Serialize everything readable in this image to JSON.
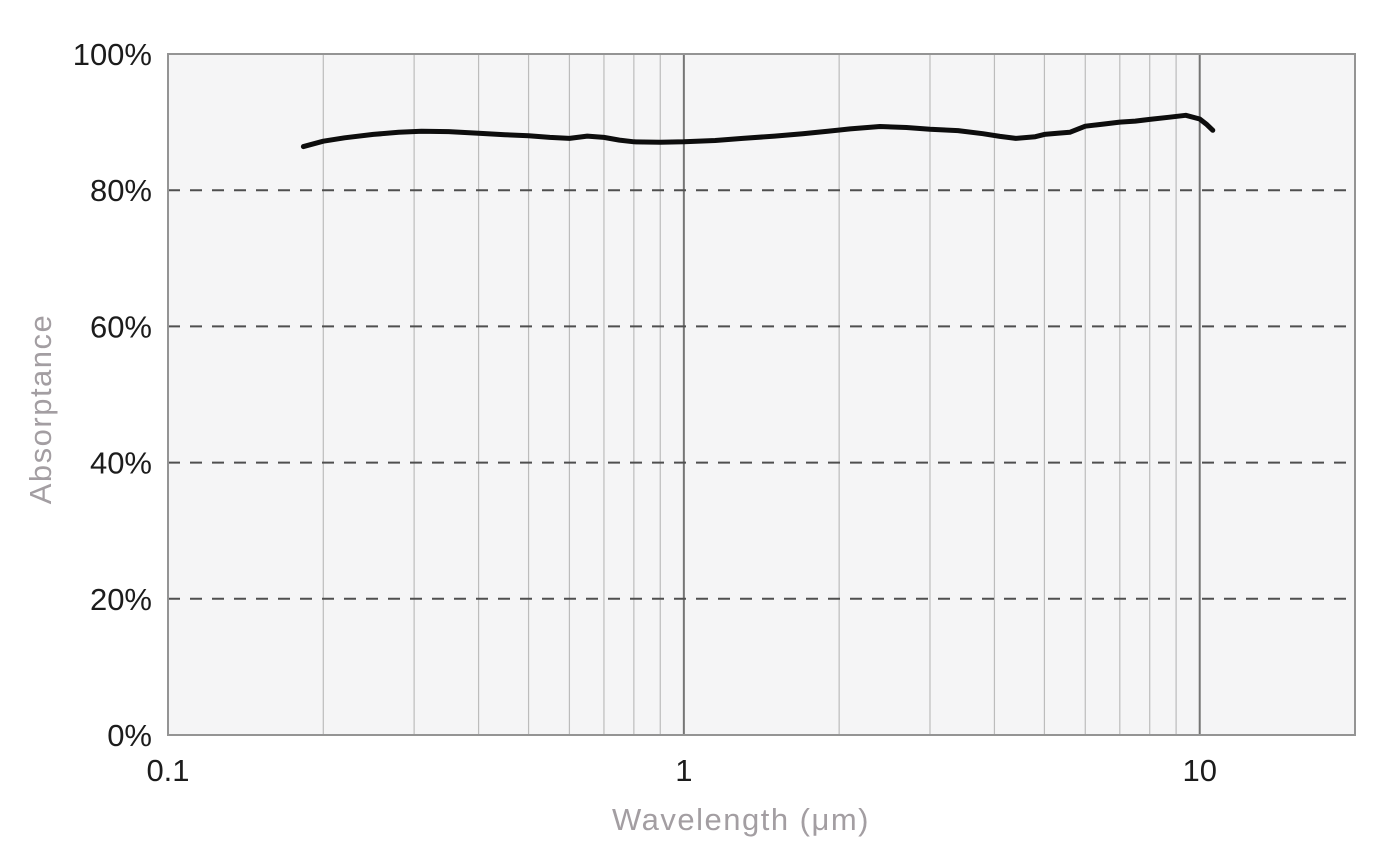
{
  "chart_data": {
    "type": "line",
    "title": "",
    "xlabel": "Wavelength (μm)",
    "ylabel": "Absorptance",
    "x_scale": "log",
    "xlim": [
      0.1,
      20
    ],
    "ylim": [
      0,
      100
    ],
    "grid": "on",
    "legend": "none",
    "x_ticks": [
      {
        "value": 0.1,
        "label": "0.1"
      },
      {
        "value": 1,
        "label": "1"
      },
      {
        "value": 10,
        "label": "10"
      }
    ],
    "y_ticks": [
      {
        "value": 0,
        "label": "0%"
      },
      {
        "value": 20,
        "label": "20%"
      },
      {
        "value": 40,
        "label": "40%"
      },
      {
        "value": 60,
        "label": "60%"
      },
      {
        "value": 80,
        "label": "80%"
      },
      {
        "value": 100,
        "label": "100%"
      }
    ],
    "x_minor_gridlines": [
      0.2,
      0.3,
      0.4,
      0.5,
      0.6,
      0.7,
      0.8,
      0.9,
      2,
      3,
      4,
      5,
      6,
      7,
      8,
      9
    ],
    "x_major_gridlines": [
      1,
      10
    ],
    "y_dashed_gridlines": [
      20,
      40,
      60,
      80
    ],
    "series": [
      {
        "name": "absorptance",
        "points": [
          [
            0.183,
            86.4
          ],
          [
            0.2,
            87.2
          ],
          [
            0.22,
            87.7
          ],
          [
            0.25,
            88.2
          ],
          [
            0.28,
            88.5
          ],
          [
            0.31,
            88.65
          ],
          [
            0.35,
            88.6
          ],
          [
            0.4,
            88.35
          ],
          [
            0.45,
            88.15
          ],
          [
            0.5,
            88.0
          ],
          [
            0.55,
            87.75
          ],
          [
            0.6,
            87.6
          ],
          [
            0.65,
            87.95
          ],
          [
            0.7,
            87.75
          ],
          [
            0.75,
            87.35
          ],
          [
            0.8,
            87.1
          ],
          [
            0.9,
            87.05
          ],
          [
            1.0,
            87.1
          ],
          [
            1.15,
            87.3
          ],
          [
            1.3,
            87.6
          ],
          [
            1.5,
            87.95
          ],
          [
            1.7,
            88.3
          ],
          [
            1.9,
            88.65
          ],
          [
            2.1,
            89.0
          ],
          [
            2.4,
            89.35
          ],
          [
            2.7,
            89.2
          ],
          [
            3.0,
            88.95
          ],
          [
            3.4,
            88.75
          ],
          [
            3.8,
            88.3
          ],
          [
            4.1,
            87.9
          ],
          [
            4.4,
            87.6
          ],
          [
            4.8,
            87.85
          ],
          [
            5.0,
            88.2
          ],
          [
            5.3,
            88.35
          ],
          [
            5.6,
            88.5
          ],
          [
            6.0,
            89.4
          ],
          [
            6.5,
            89.7
          ],
          [
            7.0,
            90.0
          ],
          [
            7.5,
            90.15
          ],
          [
            8.0,
            90.4
          ],
          [
            8.7,
            90.7
          ],
          [
            9.4,
            91.0
          ],
          [
            10.0,
            90.45
          ],
          [
            10.3,
            89.7
          ],
          [
            10.6,
            88.8
          ]
        ]
      }
    ],
    "colors": {
      "line": "#0d0d0d",
      "plot_background": "#f5f5f6",
      "plot_border": "#949494",
      "grid_minor": "#bcbcbc",
      "grid_major": "#757575",
      "grid_dashed": "#4f4f4f",
      "tick_label": "#1c1c1c",
      "axis_title": "#a39ea2"
    }
  }
}
